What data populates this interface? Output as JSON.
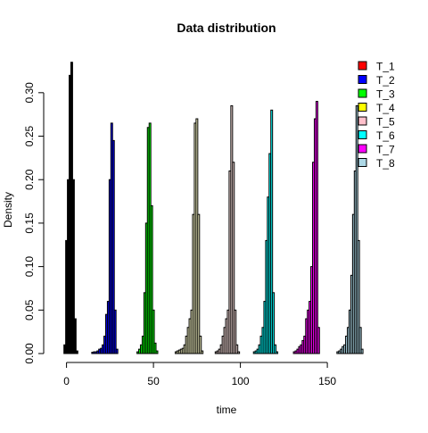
{
  "chart_data": {
    "type": "bar",
    "title": "Data distribution",
    "xlabel": "time",
    "ylabel": "Density",
    "xlim": [
      -8,
      172
    ],
    "ylim": [
      0,
      0.345
    ],
    "xticks": [
      0,
      50,
      100,
      150
    ],
    "yticks": [
      0.0,
      0.05,
      0.1,
      0.15,
      0.2,
      0.25,
      0.3
    ],
    "ytick_labels": [
      "0.00",
      "0.05",
      "0.10",
      "0.15",
      "0.20",
      "0.25",
      "0.30"
    ],
    "grid": false,
    "legend_position": "top-right",
    "bin_width": 1,
    "series": [
      {
        "name": "T_1",
        "color": "#FF0000",
        "bar_color": "#000000",
        "x": [
          -1,
          0,
          1,
          2,
          3,
          4,
          5,
          6
        ],
        "values": [
          0.01,
          0.13,
          0.2,
          0.32,
          0.335,
          0.2,
          0.04,
          0.003
        ]
      },
      {
        "name": "T_2",
        "color": "#0000FF",
        "bar_color": "#0000FF",
        "x": [
          15,
          16,
          17,
          18,
          19,
          20,
          21,
          22,
          23,
          24,
          25,
          26,
          27,
          28,
          29
        ],
        "values": [
          0.0015,
          0.002,
          0.002,
          0.003,
          0.005,
          0.006,
          0.01,
          0.02,
          0.045,
          0.06,
          0.2,
          0.265,
          0.245,
          0.05,
          0.005
        ]
      },
      {
        "name": "T_3",
        "color": "#00FF00",
        "bar_color": "#00FF00",
        "x": [
          41,
          42,
          43,
          44,
          45,
          46,
          47,
          48,
          49,
          50,
          51,
          52
        ],
        "values": [
          0.002,
          0.005,
          0.01,
          0.02,
          0.07,
          0.15,
          0.26,
          0.265,
          0.17,
          0.05,
          0.012,
          0.003
        ]
      },
      {
        "name": "T_4",
        "color": "#FFFF00",
        "bar_color": "#FFFFCC",
        "x": [
          63,
          64,
          65,
          66,
          67,
          68,
          69,
          70,
          71,
          72,
          73,
          74,
          75,
          76,
          77,
          78
        ],
        "values": [
          0.002,
          0.003,
          0.004,
          0.005,
          0.006,
          0.01,
          0.02,
          0.03,
          0.04,
          0.05,
          0.16,
          0.265,
          0.27,
          0.16,
          0.02,
          0.003
        ]
      },
      {
        "name": "T_5",
        "color": "#FFC0CB",
        "bar_color": "#FFE4E1",
        "x": [
          86,
          87,
          88,
          89,
          90,
          91,
          92,
          93,
          94,
          95,
          96,
          97,
          98,
          99
        ],
        "values": [
          0.002,
          0.003,
          0.005,
          0.01,
          0.02,
          0.03,
          0.04,
          0.05,
          0.21,
          0.285,
          0.22,
          0.05,
          0.01,
          0.002
        ]
      },
      {
        "name": "T_6",
        "color": "#00FFFF",
        "bar_color": "#00FFFF",
        "x": [
          108,
          109,
          110,
          111,
          112,
          113,
          114,
          115,
          116,
          117,
          118,
          119,
          120,
          121
        ],
        "values": [
          0.002,
          0.003,
          0.005,
          0.01,
          0.02,
          0.03,
          0.06,
          0.13,
          0.18,
          0.23,
          0.28,
          0.07,
          0.01,
          0.002
        ]
      },
      {
        "name": "T_7",
        "color": "#FF00FF",
        "bar_color": "#FF00FF",
        "x": [
          131,
          132,
          133,
          134,
          135,
          136,
          137,
          138,
          139,
          140,
          141,
          142,
          143,
          144,
          145
        ],
        "values": [
          0.002,
          0.003,
          0.005,
          0.008,
          0.01,
          0.015,
          0.02,
          0.04,
          0.05,
          0.06,
          0.1,
          0.22,
          0.27,
          0.29,
          0.03
        ]
      },
      {
        "name": "T_8",
        "color": "#ADD8E6",
        "bar_color": "#ADD8E6",
        "x": [
          156,
          157,
          158,
          159,
          160,
          161,
          162,
          163,
          164,
          165,
          166,
          167,
          168,
          169,
          170
        ],
        "values": [
          0.002,
          0.003,
          0.005,
          0.008,
          0.01,
          0.02,
          0.03,
          0.05,
          0.09,
          0.16,
          0.21,
          0.285,
          0.13,
          0.03,
          0.005
        ]
      }
    ]
  }
}
